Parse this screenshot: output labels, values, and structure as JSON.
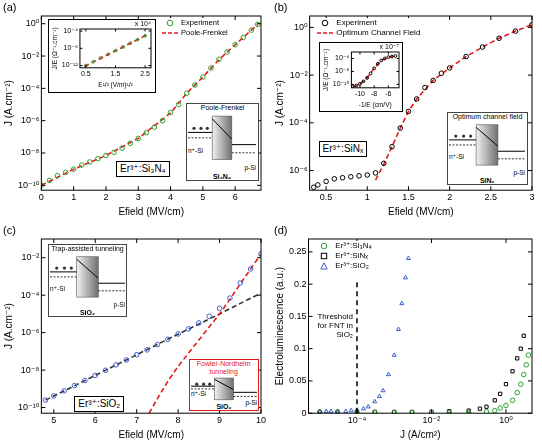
{
  "chart_data": [
    {
      "panel": "(a)",
      "type": "scatter",
      "log": "y",
      "grid": false,
      "legend": "upper center",
      "x_label": "Efield (MV/cm)",
      "y_label": "J (A.cm⁻²)",
      "xlim": [
        0,
        6.8
      ],
      "xticks": [
        0,
        1,
        2,
        3,
        4,
        5,
        6
      ],
      "ylim": [
        5e-11,
        3
      ],
      "yticks": [
        {
          "value": 1e-10,
          "label": "10⁻¹⁰"
        },
        {
          "value": 1e-08,
          "label": "10⁻⁸"
        },
        {
          "value": 1e-06,
          "label": "10⁻⁶"
        },
        {
          "value": 0.0001,
          "label": "10⁻⁴"
        },
        {
          "value": 0.01,
          "label": "10⁻²"
        },
        {
          "value": 1,
          "label": "10⁰"
        }
      ],
      "series": [
        {
          "name": "Experiment",
          "color": "#2ca02c",
          "marker": "circle",
          "line_style": "none",
          "x": [
            0,
            0.25,
            0.5,
            0.75,
            1,
            1.25,
            1.5,
            1.75,
            2,
            2.25,
            2.5,
            2.75,
            3,
            3.25,
            3.5,
            3.75,
            4,
            4.25,
            4.5,
            4.75,
            5,
            5.25,
            5.5,
            5.75,
            6,
            6.25,
            6.5,
            6.7
          ],
          "values": [
            1e-10,
            2e-10,
            4e-10,
            6.3e-10,
            1e-09,
            1.8e-09,
            2.8e-09,
            4.5e-09,
            7e-09,
            1.1e-08,
            2e-08,
            4e-08,
            8e-08,
            1.8e-07,
            4e-07,
            1e-06,
            3.2e-06,
            1e-05,
            5e-05,
            0.00016,
            0.0005,
            0.0018,
            0.0063,
            0.018,
            0.05,
            0.14,
            0.4,
            0.9
          ]
        },
        {
          "name": "Poole-Frenkel",
          "color": "#e41a1c",
          "marker": "none",
          "line_style": "dashed",
          "x": [
            0,
            1,
            2,
            3,
            4,
            4.5,
            5,
            5.5,
            6,
            6.5,
            6.7
          ],
          "values": [
            1e-10,
            1e-09,
            7e-09,
            8e-08,
            3e-06,
            5e-05,
            0.0005,
            0.006,
            0.05,
            0.4,
            0.9
          ]
        }
      ],
      "annotations": [
        {
          "text": "Er³⁺:Si₃N₄"
        }
      ],
      "diagrams": [
        {
          "title": "Poole-Frenkel",
          "left": "n⁺-Si",
          "right": "p-Si",
          "insulator": "Si₃N₄"
        }
      ],
      "inset": {
        "type": "scatter",
        "log": "y",
        "grid": false,
        "x_label": "E¹/² (V/m)¹/²",
        "y_label": "J/E (Ω⁻¹.cm⁻¹)",
        "x_multiplier": "x 10⁴",
        "xlim": [
          0.3,
          2.7
        ],
        "xticks": [
          0.5,
          1.5,
          2.5
        ],
        "ylim": [
          3e-13,
          0.0003
        ],
        "yticks": [
          {
            "value": 1e-12,
            "label": "10⁻¹²"
          },
          {
            "value": 1e-08,
            "label": "10⁻⁸"
          },
          {
            "value": 0.0001,
            "label": "10⁻⁴"
          }
        ],
        "series": [
          {
            "color": "#2ca02c",
            "marker": "circle",
            "line_style": "none",
            "x": [
              0.5,
              0.75,
              1,
              1.25,
              1.5,
              1.75,
              2,
              2.25,
              2.5
            ],
            "values": [
              1e-12,
              8e-12,
              6e-11,
              4e-10,
              3e-09,
              2e-08,
              1.5e-07,
              1e-06,
              8e-06
            ]
          },
          {
            "color": "#e41a1c",
            "marker": "none",
            "line_style": "dashed",
            "x": [
              0.45,
              2.55
            ],
            "values": [
              6e-13,
              1.2e-05
            ]
          }
        ]
      }
    },
    {
      "panel": "(b)",
      "type": "scatter",
      "log": "y",
      "grid": false,
      "legend": "upper left",
      "x_label": "Efield (MV/cm)",
      "y_label": "J (A.cm⁻²)",
      "xlim": [
        0.3,
        3
      ],
      "xticks": [
        0.5,
        1,
        1.5,
        2,
        2.5,
        3
      ],
      "ylim": [
        1.5e-07,
        3
      ],
      "yticks": [
        {
          "value": 1e-06,
          "label": "10⁻⁶"
        },
        {
          "value": 0.0001,
          "label": "10⁻⁴"
        },
        {
          "value": 0.01,
          "label": "10⁻²"
        },
        {
          "value": 1,
          "label": "10⁰"
        }
      ],
      "series": [
        {
          "name": "Experiment",
          "color": "#000000",
          "marker": "circle",
          "line_style": "none",
          "x": [
            0.35,
            0.4,
            0.5,
            0.6,
            0.7,
            0.8,
            0.9,
            1.0,
            1.1,
            1.2,
            1.3,
            1.4,
            1.5,
            1.6,
            1.7,
            1.8,
            1.9,
            2.0,
            2.2,
            2.4,
            2.6,
            2.8,
            3.0
          ],
          "values": [
            2e-07,
            2.5e-07,
            3.5e-07,
            4.5e-07,
            5e-07,
            5.5e-07,
            6e-07,
            6.5e-07,
            8e-07,
            2e-06,
            1e-05,
            6e-05,
            0.0003,
            0.001,
            0.003,
            0.006,
            0.012,
            0.02,
            0.06,
            0.15,
            0.35,
            0.7,
            1.3
          ]
        },
        {
          "name": "Optimum Channel Field",
          "color": "#e41a1c",
          "marker": "none",
          "line_style": "dashed",
          "x": [
            1.1,
            1.2,
            1.3,
            1.4,
            1.5,
            1.6,
            1.8,
            2.0,
            2.2,
            2.4,
            2.6,
            2.8,
            3.0
          ],
          "values": [
            4e-07,
            1.8e-06,
            1e-05,
            6e-05,
            0.0003,
            0.001,
            0.006,
            0.02,
            0.06,
            0.15,
            0.35,
            0.7,
            1.3
          ]
        }
      ],
      "annotations": [
        {
          "text": "Er³⁺:SiNₓ"
        }
      ],
      "diagrams": [
        {
          "title": "Optimum channel field",
          "left": "n⁺-Si",
          "right": "p-Si",
          "insulator": "SiNₓ"
        }
      ],
      "inset": {
        "type": "scatter",
        "log": "y",
        "grid": false,
        "x_label": "-1/E (cm/V)",
        "y_label": "J/E (Ω⁻¹.cm⁻¹)",
        "x_multiplier": "x 10⁻⁷",
        "xlim": [
          -11.2,
          -4.5
        ],
        "xticks": [
          -10,
          -8,
          -6
        ],
        "ylim": [
          3e-11,
          1e-05
        ],
        "yticks": [
          {
            "value": 1e-10,
            "label": "10⁻¹⁰"
          },
          {
            "value": 1e-08,
            "label": "10⁻⁸"
          },
          {
            "value": 1e-06,
            "label": "10⁻⁶"
          }
        ],
        "series": [
          {
            "color": "#000000",
            "marker": "circle",
            "line_style": "none",
            "x": [
              -11,
              -10.5,
              -10,
              -9.5,
              -9,
              -8.5,
              -8,
              -7.5,
              -7,
              -6.5,
              -6,
              -5.5,
              -5
            ],
            "values": [
              5e-11,
              7e-11,
              1.2e-10,
              3e-10,
              1e-09,
              5e-09,
              3e-08,
              1.5e-07,
              5e-07,
              1e-06,
              1.6e-06,
              2e-06,
              2.5e-06
            ]
          },
          {
            "color": "#e41a1c",
            "marker": "none",
            "line_style": "dashed",
            "x": [
              -11,
              -10,
              -9,
              -8,
              -7,
              -6,
              -5
            ],
            "values": [
              4e-11,
              1.1e-10,
              1e-09,
              3e-08,
              5e-07,
              1.6e-06,
              2.5e-06
            ]
          }
        ]
      }
    },
    {
      "panel": "(c)",
      "type": "scatter",
      "log": "y",
      "grid": false,
      "x_label": "Efield (MV/cm)",
      "y_label": "J (A.cm⁻²)",
      "xlim": [
        4.7,
        10
      ],
      "xticks": [
        5,
        6,
        7,
        8,
        9,
        10
      ],
      "ylim": [
        5e-11,
        0.1
      ],
      "yticks": [
        {
          "value": 1e-10,
          "label": "10⁻¹⁰"
        },
        {
          "value": 1e-08,
          "label": "10⁻⁸"
        },
        {
          "value": 1e-06,
          "label": "10⁻⁶"
        },
        {
          "value": 0.0001,
          "label": "10⁻⁴"
        },
        {
          "value": 0.01,
          "label": "10⁻²"
        }
      ],
      "series": [
        {
          "color": "#3a5fcd",
          "marker": "circle",
          "line_style": "none",
          "x": [
            4.8,
            5,
            5.25,
            5.5,
            5.75,
            6,
            6.25,
            6.5,
            6.75,
            7,
            7.25,
            7.5,
            7.75,
            8,
            8.25,
            8.5,
            8.75,
            9,
            9.25,
            9.5,
            9.75,
            10
          ],
          "values": [
            2.5e-10,
            4.2e-10,
            7.8e-10,
            1.5e-09,
            2.8e-09,
            5.2e-09,
            9.8e-09,
            1.9e-08,
            3.5e-08,
            6.6e-08,
            1.2e-07,
            2.3e-07,
            4.4e-07,
            8.5e-07,
            1.6e-06,
            3.3e-06,
            7.5e-06,
            2e-05,
            7e-05,
            0.00045,
            0.0025,
            0.016
          ]
        },
        {
          "color": "#e41a1c",
          "marker": "none",
          "line_style": "dashed",
          "x": [
            7.3,
            7.5,
            7.75,
            8,
            8.25,
            8.5,
            8.75,
            9,
            9.25,
            9.5,
            9.75,
            10
          ],
          "values": [
            5e-11,
            3e-10,
            2.5e-09,
            1.6e-08,
            8e-08,
            4e-07,
            2e-06,
            1e-05,
            6e-05,
            0.0004,
            0.0025,
            0.016
          ]
        },
        {
          "color": "#333333",
          "marker": "none",
          "line_style": "dashed",
          "x": [
            4.8,
            6,
            7,
            8,
            9,
            10
          ],
          "values": [
            2.5e-10,
            5.2e-09,
            6.6e-08,
            8.3e-07,
            1e-05,
            0.00013
          ]
        }
      ],
      "annotations": [
        {
          "text": "Er³⁺:SiO₂"
        }
      ],
      "diagrams": [
        {
          "title": "Trap-assisted tunneling",
          "left": "n⁺-Si",
          "right": "p-Si",
          "insulator": "SiO₂"
        },
        {
          "title": "Fowler-Nordheim tunneling",
          "left": "n⁺-Si",
          "right": "p-Si",
          "insulator": "SiO₂",
          "color": "#e41a1c"
        }
      ]
    },
    {
      "panel": "(d)",
      "type": "scatter",
      "log": "x",
      "grid": false,
      "legend": "upper left",
      "x_label": "J (A/cm²)",
      "y_label": "Electroluminescence (a.u.)",
      "xlim": [
        5e-06,
        5
      ],
      "xticks": [
        {
          "value": 0.0001,
          "label": "10⁻⁴"
        },
        {
          "value": 0.01,
          "label": "10⁻²"
        },
        {
          "value": 1,
          "label": "10⁰"
        }
      ],
      "ylim": [
        0,
        0.27
      ],
      "yticks": [
        0,
        0.05,
        0.1,
        0.15,
        0.2,
        0.25
      ],
      "series": [
        {
          "name": "Er³⁺:Si₃N₄",
          "color": "#2ca02c",
          "marker": "circle",
          "line_style": "none",
          "x": [
            1e-05,
            3e-05,
            0.0001,
            0.0003,
            0.001,
            0.003,
            0.01,
            0.03,
            0.1,
            0.3,
            0.5,
            0.7,
            1,
            1.5,
            2,
            2.5,
            3,
            3.5,
            4
          ],
          "values": [
            0.001,
            0.001,
            0.001,
            0.001,
            0.001,
            0.001,
            0.001,
            0.001,
            0.001,
            0.002,
            0.004,
            0.008,
            0.012,
            0.02,
            0.032,
            0.045,
            0.06,
            0.075,
            0.09
          ]
        },
        {
          "name": "Er³⁺:SiNₓ",
          "color": "#000000",
          "marker": "square",
          "line_style": "none",
          "x": [
            1e-05,
            3e-05,
            0.0001,
            0.0003,
            0.001,
            0.003,
            0.01,
            0.03,
            0.1,
            0.2,
            0.3,
            0.5,
            0.7,
            1,
            1.5,
            2,
            2.5,
            3
          ],
          "values": [
            0.002,
            0.002,
            0.002,
            0.002,
            0.002,
            0.002,
            0.002,
            0.003,
            0.004,
            0.007,
            0.01,
            0.02,
            0.03,
            0.045,
            0.065,
            0.085,
            0.1,
            0.12
          ]
        },
        {
          "name": "Er³⁺:SiO₂",
          "color": "#3a5fcd",
          "marker": "triangle",
          "line_style": "none",
          "x": [
            1e-05,
            1.5e-05,
            2e-05,
            3e-05,
            5e-05,
            7e-05,
            0.0001,
            0.00015,
            0.0002,
            0.0003,
            0.0004,
            0.0005,
            0.0007,
            0.001,
            0.0013,
            0.0016,
            0.002,
            0.0024
          ],
          "values": [
            0.003,
            0.003,
            0.003,
            0.003,
            0.003,
            0.004,
            0.005,
            0.007,
            0.01,
            0.018,
            0.026,
            0.035,
            0.06,
            0.09,
            0.13,
            0.17,
            0.21,
            0.24
          ]
        }
      ],
      "annotations": [
        {
          "text": "Threshold for FNT in SiO₂",
          "x": 0.0001,
          "line_style": "dashed"
        }
      ]
    }
  ]
}
